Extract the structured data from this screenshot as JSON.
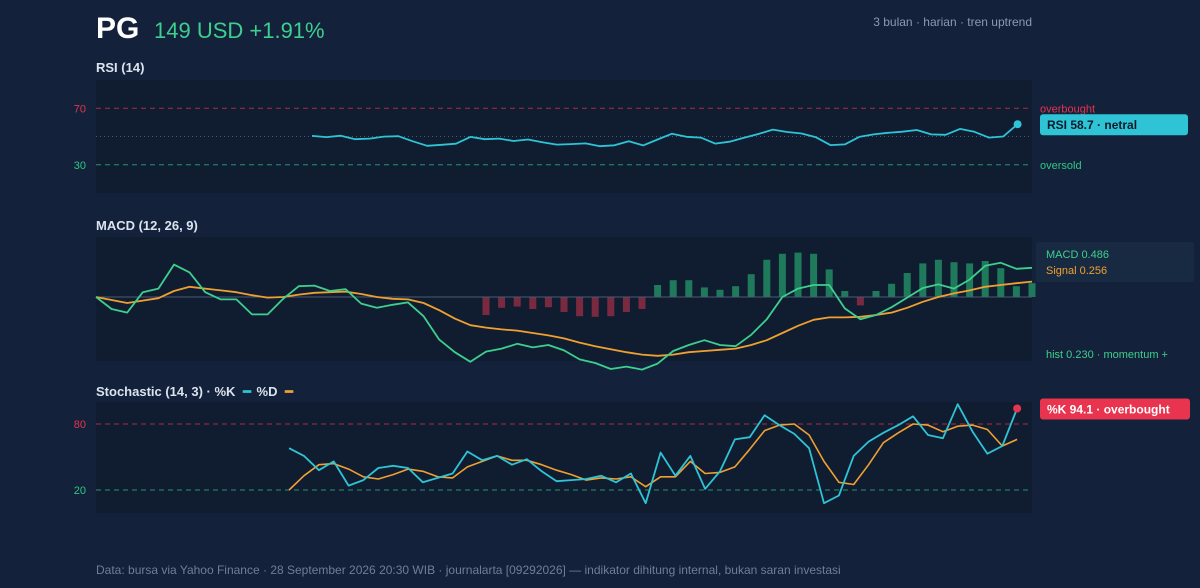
{
  "header": {
    "ticker": "PG",
    "price": "149 USD +1.91%",
    "meta": "3 bulan · harian · tren uptrend"
  },
  "footer": {
    "text": "Data: bursa via Yahoo Finance · 28 September 2026 20:30 WIB · journalarta [09292026] — indikator dihitung internal, bukan saran investasi"
  },
  "colors": {
    "background": "#13213a",
    "panel": "#101d30",
    "rsi_line": "#2ec4d6",
    "macd_line": "#3ecf8e",
    "signal_line": "#f0a030",
    "hist_positive": "#1f7a5c",
    "hist_negative": "#7a2a40",
    "overbought": "#e8344e",
    "oversold": "#2ec78a",
    "stoch_k": "#2ec4d6",
    "stoch_d": "#f0a030"
  },
  "chart_data": [
    {
      "type": "line",
      "title": "RSI (14)",
      "ylim": [
        10,
        90
      ],
      "levels": [
        {
          "value": 70,
          "label": "70",
          "tag": "overbought"
        },
        {
          "value": 30,
          "label": "30",
          "tag": "oversold"
        }
      ],
      "midline": 50,
      "x_start": 15,
      "series": [
        {
          "values": [
            50.4,
            49.6,
            50.6,
            48.1,
            48.5,
            49.9,
            50.2,
            46.6,
            43.4,
            44.1,
            44.9,
            49.7,
            48.1,
            48.5,
            46.8,
            47.9,
            46,
            44.3,
            44.6,
            45.1,
            43.1,
            43.8,
            46.6,
            43.7,
            47.9,
            52,
            49.8,
            49.2,
            45,
            46.3,
            49.1,
            51.8,
            54.9,
            53.2,
            52.1,
            49.4,
            43.9,
            44.4,
            49.7,
            51.5,
            52.6,
            53.4,
            54.6,
            51.5,
            51.2,
            55.4,
            53.3,
            49.2,
            50,
            58.7
          ]
        }
      ],
      "badge": "RSI 58.7 · netral"
    },
    {
      "type": "line",
      "title": "MACD (12, 26, 9)",
      "ylim": [
        -1.2,
        1.2
      ],
      "zero": 0,
      "series": [
        {
          "name": "MACD",
          "values": [
            0,
            -0.2,
            -0.26,
            0.08,
            0.14,
            0.54,
            0.41,
            0.08,
            -0.04,
            -0.04,
            -0.29,
            -0.29,
            -0.03,
            0.18,
            0.19,
            0.1,
            0.13,
            -0.11,
            -0.18,
            -0.13,
            -0.09,
            -0.32,
            -0.71,
            -0.92,
            -1.08,
            -0.91,
            -0.86,
            -0.78,
            -0.84,
            -0.8,
            -0.89,
            -1.04,
            -1.1,
            -1.2,
            -1.16,
            -1.21,
            -1.11,
            -0.9,
            -0.8,
            -0.72,
            -0.8,
            -0.82,
            -0.63,
            -0.37,
            0,
            0.14,
            0.2,
            0.2,
            -0.19,
            -0.37,
            -0.3,
            -0.17,
            -0.01,
            0.15,
            0.21,
            0.14,
            0.29,
            0.52,
            0.57,
            0.47,
            0.486
          ]
        },
        {
          "name": "Signal",
          "values": [
            0,
            -0.05,
            -0.1,
            -0.06,
            -0.02,
            0.1,
            0.17,
            0.14,
            0.11,
            0.08,
            0.03,
            -0.01,
            0,
            0.04,
            0.07,
            0.08,
            0.09,
            0.05,
            0,
            -0.03,
            -0.04,
            -0.1,
            -0.22,
            -0.36,
            -0.47,
            -0.51,
            -0.54,
            -0.56,
            -0.6,
            -0.64,
            -0.69,
            -0.76,
            -0.82,
            -0.87,
            -0.92,
            -0.96,
            -0.98,
            -0.96,
            -0.92,
            -0.9,
            -0.88,
            -0.86,
            -0.8,
            -0.72,
            -0.6,
            -0.48,
            -0.38,
            -0.34,
            -0.34,
            -0.33,
            -0.3,
            -0.26,
            -0.18,
            -0.08,
            0,
            0.06,
            0.11,
            0.17,
            0.2,
            0.23,
            0.256
          ]
        }
      ],
      "histogram": [
        0,
        0,
        0,
        0,
        0,
        0,
        0,
        0,
        0,
        0,
        0,
        0,
        0,
        0,
        0,
        0,
        0,
        0,
        0,
        0,
        0,
        0,
        0,
        0,
        0,
        -0.3,
        -0.18,
        -0.16,
        -0.2,
        -0.17,
        -0.25,
        -0.32,
        -0.33,
        -0.32,
        -0.25,
        -0.2,
        0.2,
        0.28,
        0.28,
        0.16,
        0.12,
        0.18,
        0.38,
        0.62,
        0.72,
        0.74,
        0.72,
        0.46,
        0.1,
        -0.14,
        0.1,
        0.22,
        0.4,
        0.56,
        0.62,
        0.58,
        0.56,
        0.6,
        0.48,
        0.18,
        0.23
      ],
      "legend": {
        "macd": "MACD 0.486",
        "signal": "Signal 0.256",
        "hist": "hist 0.230 · momentum +"
      }
    },
    {
      "type": "line",
      "title": "Stochastic (14, 3) · %K",
      "legend_d": "%D",
      "ylim": [
        0,
        100
      ],
      "levels": [
        {
          "value": 80,
          "label": "80"
        },
        {
          "value": 20,
          "label": "20"
        }
      ],
      "x_start": 13,
      "series": [
        {
          "name": "%K",
          "values": [
            58,
            51,
            38,
            46,
            24,
            29,
            40,
            42,
            40,
            27,
            31,
            35,
            55,
            47,
            51,
            43,
            48,
            37,
            28,
            29,
            30,
            33,
            27,
            35,
            8,
            54,
            33,
            51,
            21,
            37,
            66,
            68,
            88,
            79,
            71,
            58,
            8,
            15,
            51,
            64,
            72,
            79,
            87,
            70,
            67,
            98,
            73,
            53,
            60,
            94.1
          ]
        },
        {
          "name": "%D",
          "values": [
            20,
            33,
            43,
            44,
            39,
            32,
            30,
            34,
            39,
            37,
            32,
            31,
            41,
            46,
            51,
            47,
            47,
            43,
            38,
            34,
            29,
            31,
            30,
            32,
            23,
            32,
            32,
            46,
            35,
            36,
            41,
            57,
            74,
            79,
            80,
            70,
            46,
            27,
            25,
            43,
            63,
            72,
            80,
            79,
            73,
            78,
            79,
            75,
            60,
            66
          ]
        }
      ],
      "badge": "%K 94.1 · overbought"
    }
  ]
}
